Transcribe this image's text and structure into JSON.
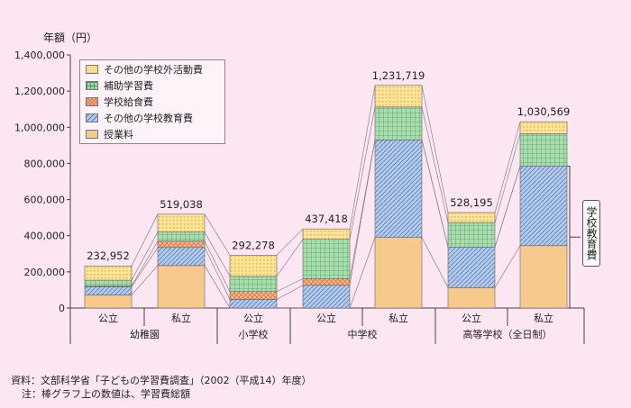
{
  "chart_data": {
    "type": "bar",
    "stacked": true,
    "ylabel": "年額（円）",
    "ylim": [
      0,
      1400000
    ],
    "yticks": [
      "0",
      "200,000",
      "400,000",
      "600,000",
      "800,000",
      "1,000,000",
      "1,200,000",
      "1,400,000"
    ],
    "ytick_values": [
      0,
      200000,
      400000,
      600000,
      800000,
      1000000,
      1200000,
      1400000
    ],
    "categories": [
      "公立",
      "私立",
      "公立",
      "公立",
      "私立",
      "公立",
      "私立"
    ],
    "groups": [
      {
        "label": "幼稚園",
        "span": [
          0,
          1
        ]
      },
      {
        "label": "小学校",
        "span": [
          2,
          2
        ]
      },
      {
        "label": "中学校",
        "span": [
          3,
          4
        ]
      },
      {
        "label": "高等学校（全日制）",
        "span": [
          5,
          6
        ]
      }
    ],
    "totals": [
      232952,
      519038,
      292278,
      437418,
      1231719,
      528195,
      1030569
    ],
    "total_labels": [
      "232,952",
      "519,038",
      "292,278",
      "437,418",
      "1,231,719",
      "528,195",
      "1,030,569"
    ],
    "series": [
      {
        "name": "授業料",
        "color": "#f8c98c",
        "values": [
          72000,
          235000,
          0,
          0,
          390000,
          113000,
          345000
        ]
      },
      {
        "name": "その他の学校教育費",
        "color": "#a8c1e5",
        "values": [
          46000,
          100000,
          48000,
          126000,
          540000,
          224000,
          440000
        ]
      },
      {
        "name": "学校給食費",
        "color": "#f6b18f",
        "values": [
          4000,
          35000,
          43000,
          36000,
          0,
          0,
          0
        ]
      },
      {
        "name": "補助学習費",
        "color": "#9fd7a8",
        "values": [
          32000,
          50000,
          84000,
          218000,
          182000,
          136000,
          180000
        ]
      },
      {
        "name": "その他の学校外活動費",
        "color": "#fbe39a",
        "values": [
          78952,
          99038,
          117278,
          57418,
          119719,
          55195,
          65569
        ]
      }
    ],
    "legend": [
      "その他の学校外活動費",
      "補助学習費",
      "学校給食費",
      "その他の学校教育費",
      "授業料"
    ],
    "bracket_label": "学校教育費"
  },
  "source": "資料：文部科学省「子どもの学習費調査」（2002（平成14）年度）",
  "note": "注：棒グラフ上の数値は、学習費総額",
  "legend_colors": {
    "その他の学校外活動費": "#fbe39a",
    "補助学習費": "#9fd7a8",
    "学校給食費": "#f6b18f",
    "その他の学校教育費": "#a8c1e5",
    "授業料": "#f8c98c"
  }
}
